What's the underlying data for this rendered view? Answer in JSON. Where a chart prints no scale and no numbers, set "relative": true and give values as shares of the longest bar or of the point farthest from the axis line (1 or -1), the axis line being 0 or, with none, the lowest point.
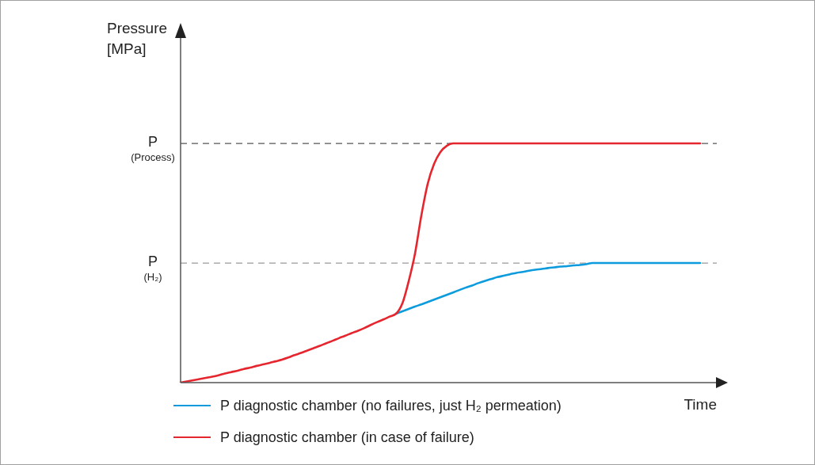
{
  "chart_data": {
    "type": "line",
    "xlabel": "Time",
    "annotations": [
      "Pressure [MPa]"
    ],
    "relative": true,
    "legend": "bottom",
    "categories": [
      null,
      null,
      null,
      null,
      null,
      null,
      null,
      null,
      null,
      null,
      null,
      null,
      null,
      null,
      null,
      null,
      null,
      null,
      null,
      null,
      null,
      null,
      null,
      null,
      null,
      null,
      null,
      null,
      null,
      null,
      null,
      null,
      null,
      null,
      null,
      null,
      null,
      null,
      null,
      null,
      null,
      null,
      null,
      null,
      null,
      null,
      null,
      null,
      null,
      null,
      null,
      null,
      null,
      null,
      null,
      null,
      null,
      null,
      null,
      null,
      null,
      null,
      null,
      null,
      null,
      null,
      null,
      null,
      null,
      null,
      null,
      null,
      null,
      null,
      null,
      null,
      null,
      null,
      null,
      null,
      null,
      null,
      null
    ],
    "series": [
      {
        "name": "P diagnostic chamber (no failures, just H₂ permeation)",
        "color": "#0c9bdc",
        "values": [
          null,
          null,
          null,
          null,
          null,
          null,
          null,
          null,
          null,
          null,
          null,
          null,
          null,
          null,
          null,
          null,
          null,
          null,
          null,
          null,
          null,
          null,
          null,
          null,
          null,
          null,
          null,
          null,
          null,
          null,
          null,
          null,
          null,
          null,
          0.288,
          0.298,
          0.308,
          0.318,
          0.327,
          0.337,
          0.347,
          0.357,
          0.367,
          0.377,
          0.387,
          0.397,
          0.406,
          0.416,
          0.425,
          0.433,
          0.441,
          0.447,
          0.453,
          0.459,
          0.463,
          0.468,
          0.472,
          0.475,
          0.479,
          0.482,
          0.485,
          0.487,
          0.49,
          0.492,
          0.495,
          0.5,
          0.5,
          0.5,
          0.5,
          0.5,
          0.5,
          0.5,
          0.5,
          0.5,
          0.5,
          0.5,
          0.5,
          0.5,
          0.5,
          0.5,
          0.5,
          0.5,
          0.5
        ]
      },
      {
        "name": "P diagnostic chamber (in case of failure)",
        "color": "#e6262e",
        "values": [
          0,
          0.005,
          0.01,
          0.015,
          0.02,
          0.025,
          0.031,
          0.038,
          0.044,
          0.05,
          0.057,
          0.063,
          0.07,
          0.076,
          0.082,
          0.089,
          0.096,
          0.105,
          0.115,
          0.124,
          0.134,
          0.144,
          0.154,
          0.165,
          0.175,
          0.186,
          0.196,
          0.207,
          0.217,
          0.228,
          0.241,
          0.253,
          0.264,
          0.276,
          0.288,
          0.331,
          0.424,
          0.54,
          0.699,
          0.831,
          0.914,
          0.964,
          0.99,
          1,
          1,
          1,
          1,
          1,
          1,
          1,
          1,
          1,
          1,
          1,
          1,
          1,
          1,
          1,
          1,
          1,
          1,
          1,
          1,
          1,
          1,
          1,
          1,
          1,
          1,
          1,
          1,
          1,
          1,
          1,
          1,
          1,
          1,
          1,
          1,
          1,
          1,
          1,
          1
        ]
      }
    ],
    "ref_lines": [
      {
        "axis": "y",
        "value": 1,
        "label": "P (Process)",
        "color": "#555555",
        "line_style": "dashed"
      },
      {
        "axis": "y",
        "value": 0.5,
        "label": "P (H₂)",
        "color": "#9a9a9a",
        "line_style": "dashed"
      }
    ]
  }
}
